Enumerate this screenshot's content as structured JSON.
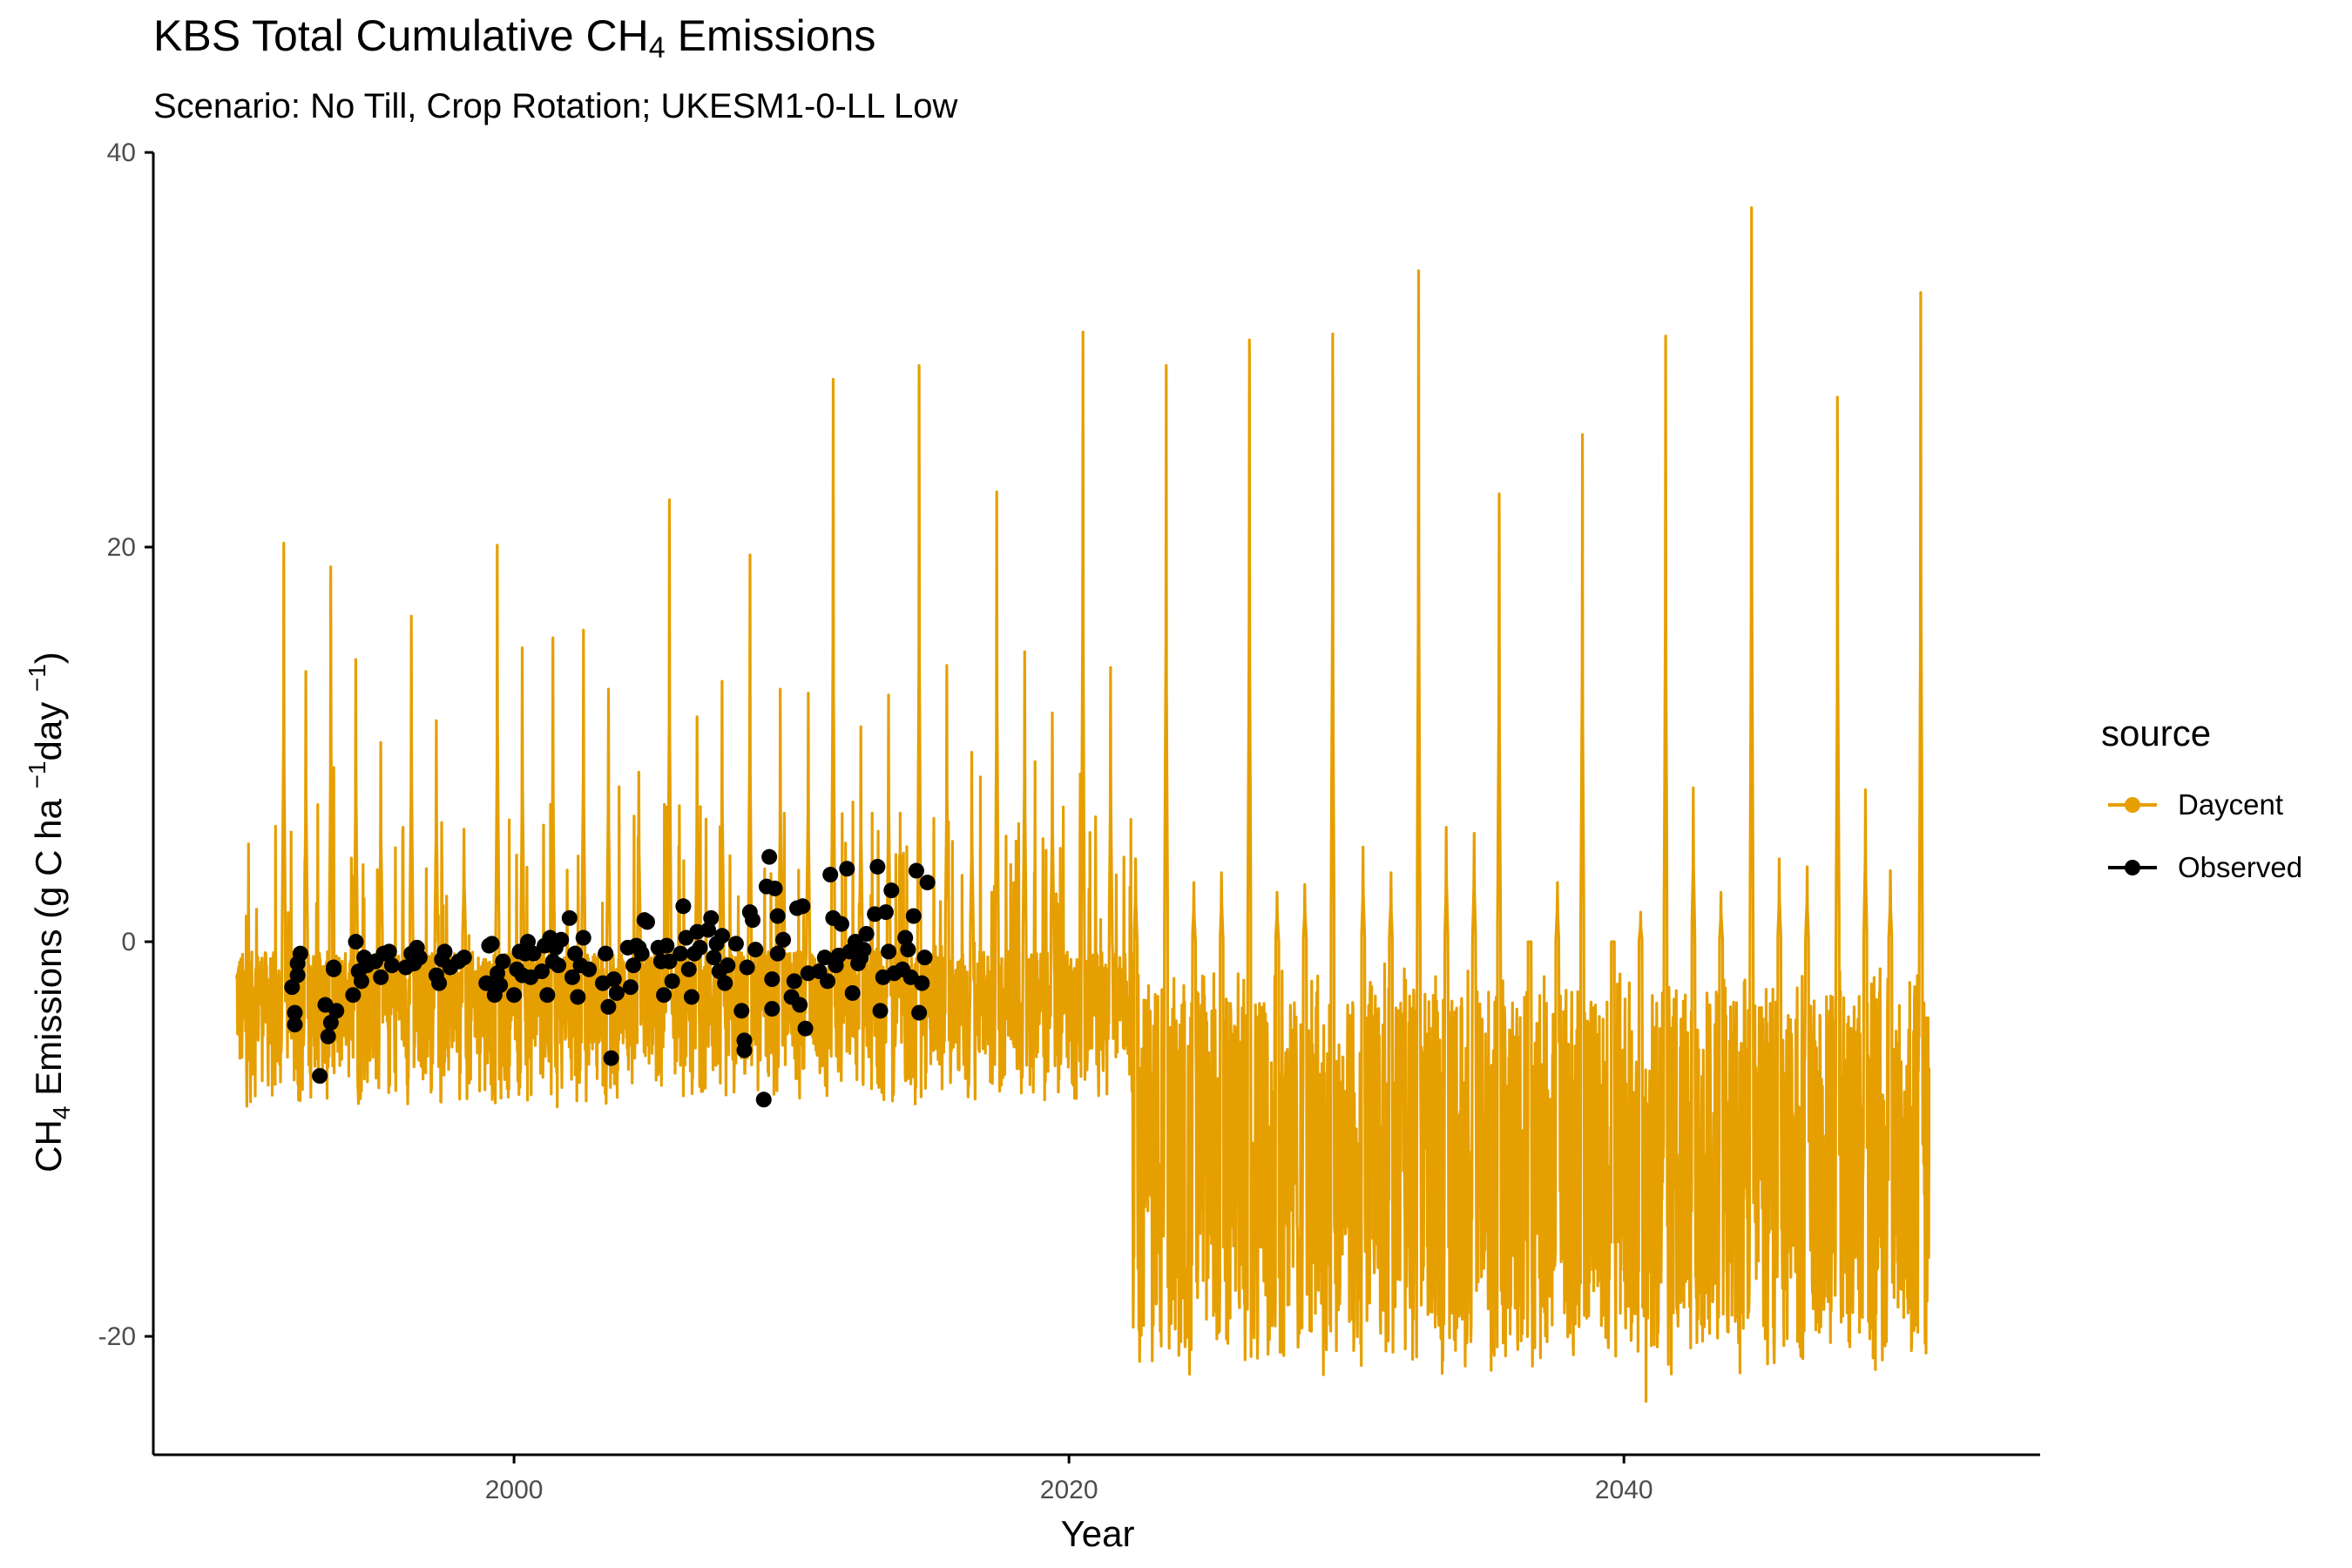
{
  "chart_data": {
    "type": "line",
    "title": "KBS Total Cumulative CH",
    "title_sub": "4",
    "title_suffix": " Emissions",
    "subtitle": "Scenario: No Till, Crop Rotation; UKESM1-0-LL Low",
    "xlabel": "Year",
    "ylabel": "CH4 Emissions (g C ha −1day −1)",
    "xlim": [
      1987,
      2055
    ],
    "ylim": [
      -26,
      40
    ],
    "xticks": [
      2000,
      2020,
      2040
    ],
    "yticks": [
      -20,
      0,
      20,
      40
    ],
    "grid": false,
    "legend": {
      "title": "source",
      "position": "right"
    },
    "series": [
      {
        "name": "Daycent",
        "kind": "line",
        "color": "#E69F00",
        "x_range": [
          1990,
          2051
        ],
        "annual_peaks": [
          {
            "x": 1991.7,
            "y": 20.2
          },
          {
            "x": 1992.5,
            "y": 13.7
          },
          {
            "x": 1993.4,
            "y": 19.0
          },
          {
            "x": 1994.3,
            "y": 14.3
          },
          {
            "x": 1995.2,
            "y": 10.1
          },
          {
            "x": 1996.3,
            "y": 16.5
          },
          {
            "x": 1997.2,
            "y": 11.2
          },
          {
            "x": 1998.2,
            "y": 5.7
          },
          {
            "x": 1999.4,
            "y": 20.1
          },
          {
            "x": 2000.3,
            "y": 14.9
          },
          {
            "x": 2001.4,
            "y": 15.4
          },
          {
            "x": 2002.5,
            "y": 15.8
          },
          {
            "x": 2003.4,
            "y": 12.8
          },
          {
            "x": 2004.5,
            "y": 8.6
          },
          {
            "x": 2005.6,
            "y": 22.4
          },
          {
            "x": 2006.6,
            "y": 11.4
          },
          {
            "x": 2007.5,
            "y": 13.2
          },
          {
            "x": 2008.5,
            "y": 19.6
          },
          {
            "x": 2009.6,
            "y": 12.8
          },
          {
            "x": 2010.6,
            "y": 12.6
          },
          {
            "x": 2011.5,
            "y": 28.5
          },
          {
            "x": 2012.5,
            "y": 10.9
          },
          {
            "x": 2013.5,
            "y": 12.5
          },
          {
            "x": 2014.6,
            "y": 29.2
          },
          {
            "x": 2015.6,
            "y": 14.0
          },
          {
            "x": 2016.5,
            "y": 9.6
          },
          {
            "x": 2017.4,
            "y": 22.8
          },
          {
            "x": 2018.4,
            "y": 14.7
          },
          {
            "x": 2019.4,
            "y": 11.6
          },
          {
            "x": 2020.5,
            "y": 30.9
          },
          {
            "x": 2021.5,
            "y": 13.9
          },
          {
            "x": 2022.4,
            "y": 4.2
          },
          {
            "x": 2023.5,
            "y": 29.2
          },
          {
            "x": 2024.5,
            "y": 3.0
          },
          {
            "x": 2025.5,
            "y": 3.5
          },
          {
            "x": 2026.5,
            "y": 30.5
          },
          {
            "x": 2027.5,
            "y": 2.5
          },
          {
            "x": 2028.5,
            "y": 2.9
          },
          {
            "x": 2029.5,
            "y": 30.8
          },
          {
            "x": 2030.6,
            "y": 4.8
          },
          {
            "x": 2031.6,
            "y": 3.5
          },
          {
            "x": 2032.6,
            "y": 34.0
          },
          {
            "x": 2033.6,
            "y": 5.8
          },
          {
            "x": 2034.6,
            "y": 5.5
          },
          {
            "x": 2035.5,
            "y": 22.7
          },
          {
            "x": 2036.6,
            "y": 0.0
          },
          {
            "x": 2037.6,
            "y": 3.0
          },
          {
            "x": 2038.5,
            "y": 25.7
          },
          {
            "x": 2039.6,
            "y": 0.0
          },
          {
            "x": 2040.6,
            "y": 1.5
          },
          {
            "x": 2041.5,
            "y": 30.7
          },
          {
            "x": 2042.5,
            "y": 7.8
          },
          {
            "x": 2043.5,
            "y": 2.5
          },
          {
            "x": 2044.6,
            "y": 37.2
          },
          {
            "x": 2045.6,
            "y": 4.2
          },
          {
            "x": 2046.6,
            "y": 3.8
          },
          {
            "x": 2047.7,
            "y": 27.6
          },
          {
            "x": 2048.7,
            "y": 7.7
          },
          {
            "x": 2049.6,
            "y": 3.6
          },
          {
            "x": 2050.7,
            "y": 32.9
          }
        ],
        "baseline_pre_2022": {
          "typical_high": -0.5,
          "typical_low": -8.5
        },
        "baseline_post_2022": {
          "typical_high": -1.0,
          "typical_low": -22.0
        },
        "min": {
          "x": 2040.8,
          "y": -23.3
        }
      },
      {
        "name": "Observed",
        "kind": "points",
        "color": "#000000",
        "points": [
          [
            1992.0,
            -2.3
          ],
          [
            1992.1,
            -3.6
          ],
          [
            1992.1,
            -4.2
          ],
          [
            1992.2,
            -1.1
          ],
          [
            1992.3,
            -0.6
          ],
          [
            1992.2,
            -1.7
          ],
          [
            1993.0,
            -6.8
          ],
          [
            1993.2,
            -3.2
          ],
          [
            1993.3,
            -4.8
          ],
          [
            1993.4,
            -4.1
          ],
          [
            1993.5,
            -1.4
          ],
          [
            1993.6,
            -3.5
          ],
          [
            1993.5,
            -1.3
          ],
          [
            1994.2,
            -2.7
          ],
          [
            1994.3,
            0.0
          ],
          [
            1994.4,
            -1.5
          ],
          [
            1994.5,
            -2.0
          ],
          [
            1994.6,
            -0.8
          ],
          [
            1994.7,
            -1.2
          ],
          [
            1995.0,
            -1.0
          ],
          [
            1995.2,
            -1.8
          ],
          [
            1995.3,
            -0.6
          ],
          [
            1995.5,
            -0.5
          ],
          [
            1995.6,
            -1.2
          ],
          [
            1996.1,
            -1.3
          ],
          [
            1996.3,
            -0.6
          ],
          [
            1996.4,
            -1.1
          ],
          [
            1996.5,
            -0.3
          ],
          [
            1996.6,
            -0.8
          ],
          [
            1997.2,
            -1.7
          ],
          [
            1997.3,
            -2.1
          ],
          [
            1997.4,
            -0.9
          ],
          [
            1997.5,
            -0.5
          ],
          [
            1997.7,
            -1.3
          ],
          [
            1998.0,
            -1.0
          ],
          [
            1998.2,
            -0.8
          ],
          [
            1999.0,
            -2.1
          ],
          [
            1999.1,
            -0.2
          ],
          [
            1999.2,
            -0.1
          ],
          [
            1999.3,
            -2.7
          ],
          [
            1999.4,
            -1.6
          ],
          [
            1999.5,
            -2.2
          ],
          [
            1999.6,
            -1.0
          ],
          [
            2000.0,
            -2.7
          ],
          [
            2000.1,
            -1.4
          ],
          [
            2000.2,
            -0.5
          ],
          [
            2000.3,
            -1.7
          ],
          [
            2000.4,
            -0.6
          ],
          [
            2000.5,
            0.0
          ],
          [
            2000.6,
            -1.8
          ],
          [
            2000.7,
            -0.6
          ],
          [
            2001.0,
            -1.5
          ],
          [
            2001.1,
            -0.2
          ],
          [
            2001.2,
            -2.7
          ],
          [
            2001.3,
            0.2
          ],
          [
            2001.4,
            -1.0
          ],
          [
            2001.5,
            -0.3
          ],
          [
            2001.6,
            -1.2
          ],
          [
            2001.7,
            0.1
          ],
          [
            2002.0,
            1.2
          ],
          [
            2002.1,
            -1.8
          ],
          [
            2002.2,
            -0.6
          ],
          [
            2002.3,
            -2.8
          ],
          [
            2002.4,
            -1.2
          ],
          [
            2002.5,
            0.2
          ],
          [
            2002.7,
            -1.4
          ],
          [
            2003.2,
            -2.1
          ],
          [
            2003.3,
            -0.6
          ],
          [
            2003.4,
            -3.3
          ],
          [
            2003.5,
            -5.9
          ],
          [
            2003.6,
            -1.9
          ],
          [
            2003.7,
            -2.6
          ],
          [
            2004.1,
            -0.3
          ],
          [
            2004.2,
            -2.3
          ],
          [
            2004.3,
            -1.2
          ],
          [
            2004.4,
            -0.2
          ],
          [
            2004.5,
            -0.3
          ],
          [
            2004.6,
            -0.6
          ],
          [
            2004.7,
            1.1
          ],
          [
            2004.8,
            1.0
          ],
          [
            2005.2,
            -0.3
          ],
          [
            2005.3,
            -1.0
          ],
          [
            2005.4,
            -2.7
          ],
          [
            2005.5,
            -0.2
          ],
          [
            2005.6,
            -1.0
          ],
          [
            2005.7,
            -2.0
          ],
          [
            2006.0,
            -0.6
          ],
          [
            2006.1,
            1.8
          ],
          [
            2006.2,
            0.2
          ],
          [
            2006.3,
            -1.4
          ],
          [
            2006.4,
            -2.8
          ],
          [
            2006.5,
            -0.6
          ],
          [
            2006.6,
            0.5
          ],
          [
            2006.7,
            -0.3
          ],
          [
            2007.0,
            0.6
          ],
          [
            2007.1,
            1.2
          ],
          [
            2007.2,
            -0.8
          ],
          [
            2007.3,
            -0.1
          ],
          [
            2007.4,
            -1.5
          ],
          [
            2007.5,
            0.3
          ],
          [
            2007.6,
            -2.1
          ],
          [
            2007.7,
            -1.2
          ],
          [
            2008.0,
            -0.1
          ],
          [
            2008.2,
            -3.5
          ],
          [
            2008.3,
            -5.0
          ],
          [
            2008.3,
            -5.5
          ],
          [
            2008.4,
            -1.3
          ],
          [
            2008.5,
            1.5
          ],
          [
            2008.6,
            1.1
          ],
          [
            2008.7,
            -0.4
          ],
          [
            2009.0,
            -8.0
          ],
          [
            2009.1,
            2.8
          ],
          [
            2009.2,
            4.3
          ],
          [
            2009.3,
            -1.9
          ],
          [
            2009.3,
            -3.4
          ],
          [
            2009.4,
            2.7
          ],
          [
            2009.5,
            1.3
          ],
          [
            2009.5,
            -0.6
          ],
          [
            2009.7,
            0.1
          ],
          [
            2010.0,
            -2.8
          ],
          [
            2010.1,
            -2.0
          ],
          [
            2010.2,
            1.7
          ],
          [
            2010.3,
            -3.2
          ],
          [
            2010.4,
            1.8
          ],
          [
            2010.5,
            -4.4
          ],
          [
            2010.6,
            -1.6
          ],
          [
            2011.0,
            -1.5
          ],
          [
            2011.2,
            -0.8
          ],
          [
            2011.3,
            -2.0
          ],
          [
            2011.4,
            3.4
          ],
          [
            2011.5,
            1.2
          ],
          [
            2011.6,
            -1.2
          ],
          [
            2011.7,
            -0.7
          ],
          [
            2011.8,
            0.9
          ],
          [
            2012.0,
            3.7
          ],
          [
            2012.1,
            -0.5
          ],
          [
            2012.2,
            -2.6
          ],
          [
            2012.3,
            0.0
          ],
          [
            2012.4,
            -1.1
          ],
          [
            2012.5,
            -0.8
          ],
          [
            2012.6,
            -0.4
          ],
          [
            2012.7,
            0.4
          ],
          [
            2013.0,
            1.4
          ],
          [
            2013.1,
            3.8
          ],
          [
            2013.2,
            -3.5
          ],
          [
            2013.3,
            -1.8
          ],
          [
            2013.4,
            1.5
          ],
          [
            2013.5,
            -0.5
          ],
          [
            2013.6,
            2.6
          ],
          [
            2013.7,
            -1.6
          ],
          [
            2014.0,
            -1.4
          ],
          [
            2014.1,
            0.2
          ],
          [
            2014.2,
            -0.4
          ],
          [
            2014.3,
            -1.8
          ],
          [
            2014.4,
            1.3
          ],
          [
            2014.5,
            3.6
          ],
          [
            2014.6,
            -3.6
          ],
          [
            2014.7,
            -2.1
          ],
          [
            2014.8,
            -0.8
          ],
          [
            2014.9,
            3.0
          ]
        ]
      }
    ]
  }
}
